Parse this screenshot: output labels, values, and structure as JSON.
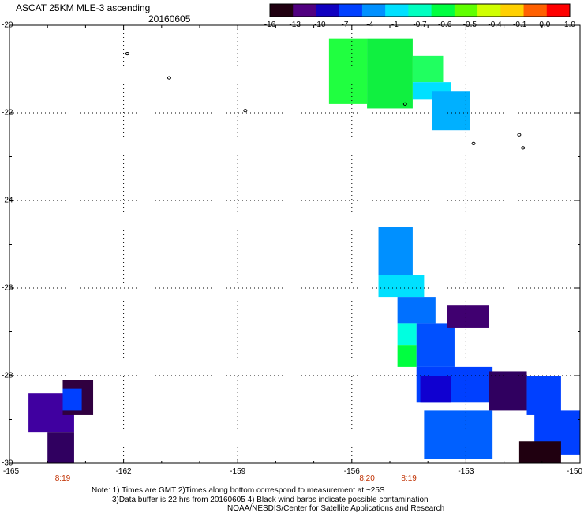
{
  "header": {
    "title": "ASCAT 25KM MLE-3 ascending",
    "date": "20160605"
  },
  "colorbar": {
    "labels": [
      "-16",
      "-13",
      "-10",
      "-7",
      "-4",
      "-1",
      "-0.7",
      "-0.6",
      "-0.5",
      "-0.4",
      "-0.1",
      "0.0",
      "1.0"
    ],
    "colors": [
      "#200010",
      "#500080",
      "#1000c0",
      "#0040ff",
      "#0090ff",
      "#00e0ff",
      "#00ffc0",
      "#00ff40",
      "#60ff00",
      "#d0ff00",
      "#ffd000",
      "#ff6000",
      "#ff0000"
    ]
  },
  "axes": {
    "lat_labels": [
      "-20",
      "-22",
      "-24",
      "-26",
      "-28",
      "-30"
    ],
    "lon_labels": [
      "-165",
      "-162",
      "-159",
      "-156",
      "-153",
      "-150"
    ]
  },
  "time_labels": [
    {
      "lon": -163.6,
      "text": "8:19"
    },
    {
      "lon": -155.6,
      "text": "8:20"
    },
    {
      "lon": -154.5,
      "text": "8:19"
    }
  ],
  "notes": {
    "line1": "Note: 1) Times are GMT 2)Times along bottom correspond to measurement at ~25S",
    "line2": "3)Data buffer is 22 hrs from 20160605 4) Black wind barbs indicate possible contamination",
    "line3": "NOAA/NESDIS/Center for Satellite Applications and Research"
  },
  "map_data": {
    "lon_range": [
      -165,
      -150
    ],
    "lat_range": [
      -30,
      -20
    ],
    "swaths": [
      {
        "lon0": -156.6,
        "lon1": -155.6,
        "lat0": -20.3,
        "lat1": -21.8,
        "color": "#20ff40"
      },
      {
        "lon0": -155.6,
        "lon1": -154.4,
        "lat0": -20.3,
        "lat1": -21.9,
        "color": "#10f040"
      },
      {
        "lon0": -154.4,
        "lon1": -153.6,
        "lat0": -20.7,
        "lat1": -21.3,
        "color": "#20ff60"
      },
      {
        "lon0": -154.4,
        "lon1": -153.4,
        "lat0": -21.3,
        "lat1": -21.7,
        "color": "#00e0ff"
      },
      {
        "lon0": -153.9,
        "lon1": -152.9,
        "lat0": -21.5,
        "lat1": -22.4,
        "color": "#00b0ff"
      },
      {
        "lon0": -155.3,
        "lon1": -154.4,
        "lat0": -24.6,
        "lat1": -25.7,
        "color": "#0090ff"
      },
      {
        "lon0": -155.3,
        "lon1": -154.1,
        "lat0": -25.7,
        "lat1": -26.2,
        "color": "#00e0ff"
      },
      {
        "lon0": -154.8,
        "lon1": -153.8,
        "lat0": -26.2,
        "lat1": -26.8,
        "color": "#0070ff"
      },
      {
        "lon0": -154.8,
        "lon1": -154.3,
        "lat0": -26.8,
        "lat1": -27.3,
        "color": "#00ffe0"
      },
      {
        "lon0": -154.8,
        "lon1": -154.3,
        "lat0": -27.3,
        "lat1": -27.8,
        "color": "#00ff40"
      },
      {
        "lon0": -154.3,
        "lon1": -153.3,
        "lat0": -26.8,
        "lat1": -27.8,
        "color": "#0050ff"
      },
      {
        "lon0": -154.3,
        "lon1": -152.3,
        "lat0": -27.8,
        "lat1": -28.6,
        "color": "#0040ff"
      },
      {
        "lon0": -153.5,
        "lon1": -152.4,
        "lat0": -26.4,
        "lat1": -26.9,
        "color": "#400070"
      },
      {
        "lon0": -154.2,
        "lon1": -153.4,
        "lat0": -28.0,
        "lat1": -28.6,
        "color": "#1000d0"
      },
      {
        "lon0": -152.4,
        "lon1": -151.4,
        "lat0": -27.9,
        "lat1": -28.8,
        "color": "#300060"
      },
      {
        "lon0": -151.4,
        "lon1": -150.5,
        "lat0": -28.0,
        "lat1": -28.9,
        "color": "#0040ff"
      },
      {
        "lon0": -154.1,
        "lon1": -152.3,
        "lat0": -28.8,
        "lat1": -29.9,
        "color": "#0060ff"
      },
      {
        "lon0": -151.2,
        "lon1": -150.0,
        "lat0": -28.8,
        "lat1": -29.8,
        "color": "#0040ff"
      },
      {
        "lon0": -151.6,
        "lon1": -150.5,
        "lat0": -29.5,
        "lat1": -30.0,
        "color": "#200010"
      },
      {
        "lon0": -164.5,
        "lon1": -163.3,
        "lat0": -28.4,
        "lat1": -29.3,
        "color": "#4000a0"
      },
      {
        "lon0": -163.6,
        "lon1": -162.8,
        "lat0": -28.1,
        "lat1": -28.9,
        "color": "#300040"
      },
      {
        "lon0": -163.6,
        "lon1": -163.1,
        "lat0": -28.3,
        "lat1": -28.8,
        "color": "#0040ff"
      },
      {
        "lon0": -164.0,
        "lon1": -163.3,
        "lat0": -29.3,
        "lat1": -30.0,
        "color": "#300060"
      }
    ],
    "islands": [
      {
        "lon": -161.9,
        "lat": -20.65
      },
      {
        "lon": -160.8,
        "lat": -21.2
      },
      {
        "lon": -158.8,
        "lat": -21.95
      },
      {
        "lon": -154.6,
        "lat": -21.8
      },
      {
        "lon": -152.8,
        "lat": -22.7
      },
      {
        "lon": -151.6,
        "lat": -22.5
      },
      {
        "lon": -151.5,
        "lat": -22.8
      }
    ]
  }
}
